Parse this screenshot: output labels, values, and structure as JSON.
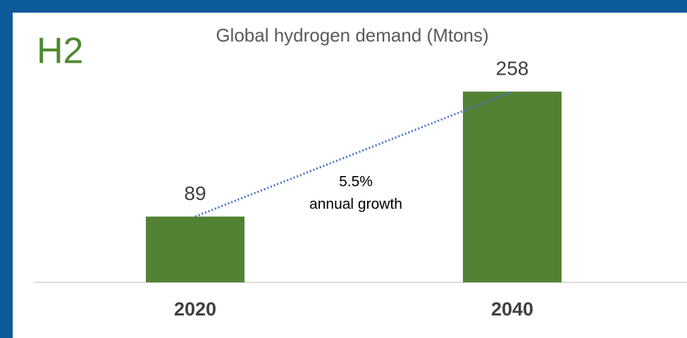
{
  "chart_data": {
    "type": "bar",
    "title": "Global hydrogen demand (Mtons)",
    "badge": "H2",
    "categories": [
      "2020",
      "2040"
    ],
    "values": [
      89,
      258
    ],
    "color": "#548235",
    "ylim": [
      0,
      280
    ],
    "annotation": [
      "5.5%",
      "annual growth"
    ],
    "trend_line": true
  }
}
